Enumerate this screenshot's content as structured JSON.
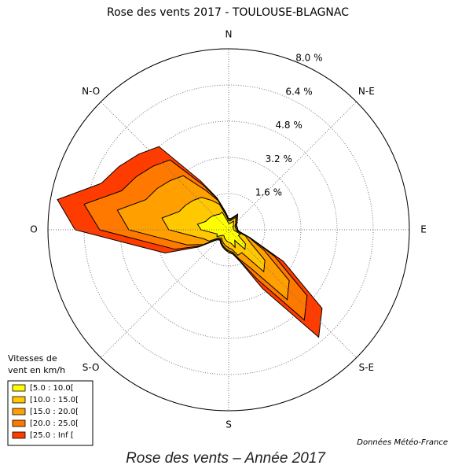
{
  "chart_data": {
    "type": "windrose",
    "title": "Rose des vents 2017 - TOULOUSE-BLAGNAC",
    "compass_labels": [
      "N",
      "N-E",
      "E",
      "S-E",
      "S",
      "S-O",
      "O",
      "N-O"
    ],
    "directions": [
      0,
      10,
      20,
      30,
      40,
      50,
      60,
      70,
      80,
      90,
      100,
      110,
      120,
      130,
      140,
      150,
      160,
      170,
      180,
      190,
      200,
      210,
      220,
      230,
      240,
      250,
      260,
      270,
      280,
      290,
      300,
      310,
      320,
      330,
      340,
      350
    ],
    "rlim": [
      0,
      8.0
    ],
    "rticks": [
      {
        "value": 1.6,
        "label": "1.6 %"
      },
      {
        "value": 3.2,
        "label": "3.2 %"
      },
      {
        "value": 4.8,
        "label": "4.8 %"
      },
      {
        "value": 6.4,
        "label": "6.4 %"
      },
      {
        "value": 8.0,
        "label": "8.0 %"
      }
    ],
    "grid": true,
    "legend_title": [
      "Vitesses de",
      "vent en km/h"
    ],
    "series": [
      {
        "name": "[5.0 : 10.0[",
        "color": "#ffff00",
        "values": [
          0.28,
          0.28,
          0.33,
          0.44,
          0.33,
          0.28,
          0.22,
          0.22,
          0.22,
          0.22,
          0.28,
          0.55,
          0.5,
          0.97,
          1.12,
          0.54,
          0.83,
          0.6,
          0.55,
          0.5,
          0.44,
          0.38,
          0.33,
          0.38,
          0.6,
          0.54,
          0.74,
          1.22,
          1.4,
          1.08,
          1.01,
          0.94,
          0.86,
          0.8,
          0.83,
          0.44
        ]
      },
      {
        "name": "[10.0 : 15.0[",
        "color": "#ffc800",
        "values": [
          0.12,
          0.12,
          0.15,
          0.2,
          0.15,
          0.12,
          0.1,
          0.1,
          0.1,
          0.1,
          0.12,
          0.25,
          0.59,
          1.13,
          1.3,
          0.63,
          0.37,
          0.28,
          0.25,
          0.22,
          0.2,
          0.18,
          0.15,
          0.18,
          0.4,
          0.63,
          0.86,
          1.43,
          1.6,
          1.26,
          1.18,
          1.09,
          1.01,
          0.7,
          0.37,
          0.2
        ]
      },
      {
        "name": "[15.0 : 20.0[",
        "color": "#ffa000",
        "values": [
          0.06,
          0.06,
          0.07,
          0.1,
          0.07,
          0.06,
          0.05,
          0.05,
          0.05,
          0.05,
          0.06,
          0.12,
          0.73,
          1.4,
          1.61,
          0.78,
          0.18,
          0.13,
          0.12,
          0.11,
          0.1,
          0.08,
          0.07,
          0.08,
          0.3,
          0.78,
          1.07,
          1.77,
          2.0,
          1.56,
          1.46,
          1.35,
          1.25,
          0.5,
          0.18,
          0.1
        ]
      },
      {
        "name": "[20.0 : 25.0[",
        "color": "#ff7800",
        "values": [
          0.03,
          0.03,
          0.03,
          0.04,
          0.03,
          0.03,
          0.02,
          0.02,
          0.02,
          0.02,
          0.03,
          0.05,
          0.53,
          1.03,
          1.18,
          0.57,
          0.08,
          0.06,
          0.05,
          0.05,
          0.04,
          0.04,
          0.03,
          0.04,
          0.12,
          0.57,
          0.78,
          1.29,
          1.5,
          1.14,
          1.06,
          0.99,
          0.91,
          0.3,
          0.08,
          0.04
        ]
      },
      {
        "name": "[25.0 : Inf [",
        "color": "#ff3c00",
        "values": [
          0.01,
          0.01,
          0.02,
          0.02,
          0.02,
          0.01,
          0.01,
          0.01,
          0.01,
          0.01,
          0.01,
          0.03,
          0.45,
          0.87,
          0.99,
          0.48,
          0.04,
          0.03,
          0.03,
          0.02,
          0.02,
          0.02,
          0.02,
          0.02,
          0.08,
          0.48,
          0.65,
          1.09,
          1.2,
          0.96,
          0.89,
          0.83,
          0.77,
          0.2,
          0.04,
          0.02
        ]
      }
    ],
    "source": "Données Météo-France",
    "caption": "Rose des vents – Année 2017"
  }
}
